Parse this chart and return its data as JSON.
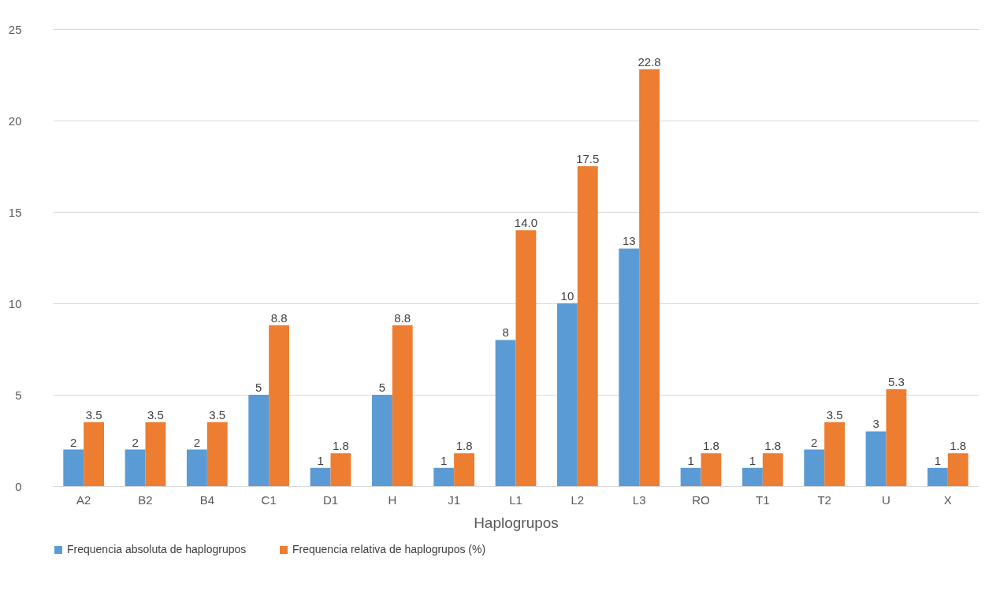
{
  "chart_data": {
    "type": "bar",
    "xlabel": "Haplogrupos",
    "categories": [
      "A2",
      "B2",
      "B4",
      "C1",
      "D1",
      "H",
      "J1",
      "L1",
      "L2",
      "L3",
      "RO",
      "T1",
      "T2",
      "U",
      "X"
    ],
    "series": [
      {
        "name": "Frequencia absoluta de haplogrupos",
        "color": "#5b9bd5",
        "values": [
          2,
          2,
          2,
          5,
          1,
          5,
          1,
          8,
          10,
          13,
          1,
          1,
          2,
          3,
          1
        ],
        "value_labels": [
          "2",
          "2",
          "2",
          "5",
          "1",
          "5",
          "1",
          "8",
          "10",
          "13",
          "1",
          "1",
          "2",
          "3",
          "1"
        ]
      },
      {
        "name": "Frequencia relativa de haplogrupos (%)",
        "color": "#ed7d31",
        "values": [
          3.5,
          3.5,
          3.5,
          8.8,
          1.8,
          8.8,
          1.8,
          14.0,
          17.5,
          22.8,
          1.8,
          1.8,
          3.5,
          5.3,
          1.8
        ],
        "value_labels": [
          "3.5",
          "3.5",
          "3.5",
          "8.8",
          "1.8",
          "8.8",
          "1.8",
          "14.0",
          "17.5",
          "22.8",
          "1.8",
          "1.8",
          "3.5",
          "5.3",
          "1.8"
        ]
      }
    ],
    "ylim": [
      0,
      25
    ],
    "yticks": [
      0,
      5,
      10,
      15,
      20,
      25
    ],
    "grid": "y",
    "legend": "bottom"
  }
}
